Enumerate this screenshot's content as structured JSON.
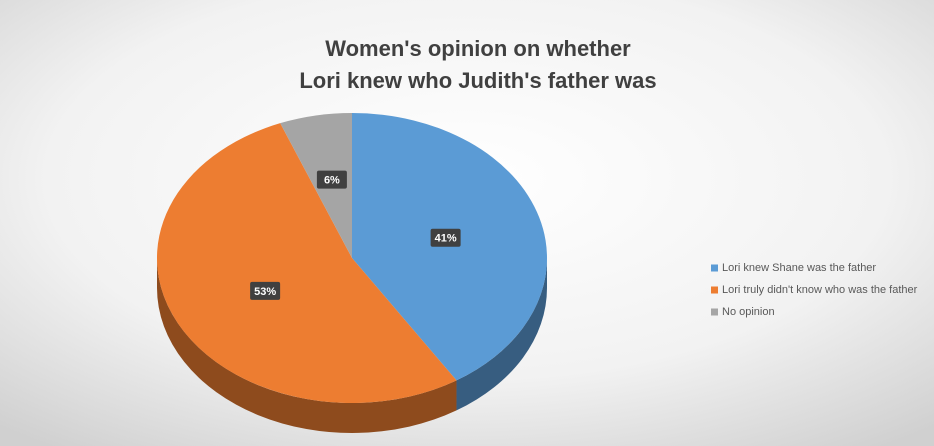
{
  "chart_data": {
    "type": "pie",
    "title": [
      "Women's opinion on whether",
      "Lori knew who Judith's father was"
    ],
    "categories": [
      "Lori knew Shane was the father",
      "Lori truly didn't know who was the father",
      "No opinion"
    ],
    "values": [
      41,
      53,
      6
    ],
    "value_labels": [
      "41%",
      "53%",
      "6%"
    ],
    "colors": [
      "#5b9bd5",
      "#ed7d31",
      "#a5a5a5"
    ],
    "legend": "right"
  }
}
